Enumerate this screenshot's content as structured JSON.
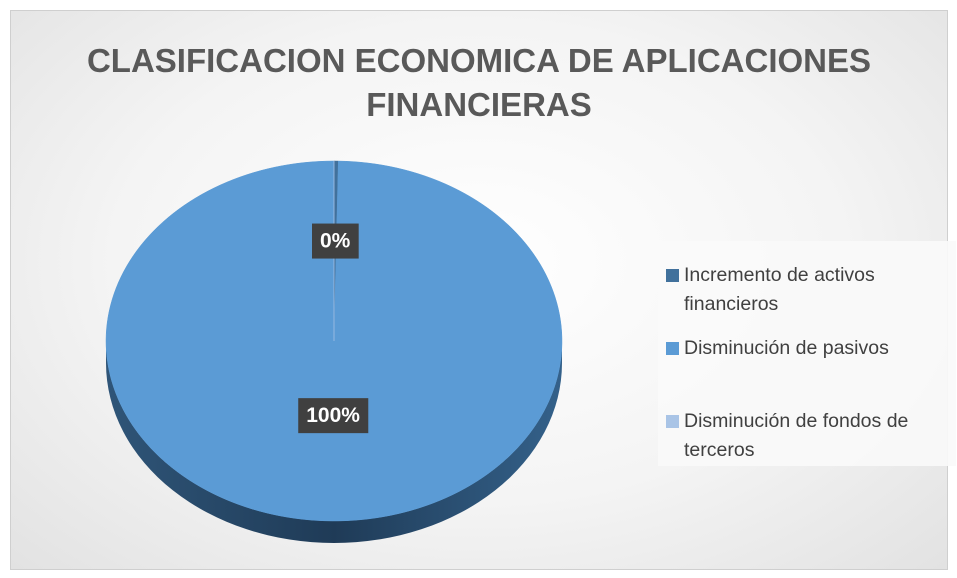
{
  "chart_data": {
    "type": "pie",
    "title": "CLASIFICACION ECONOMICA DE APLICACIONES FINANCIERAS",
    "categories": [
      "Incremento de activos financieros",
      "Disminución de pasivos",
      "Disminución de fondos de terceros"
    ],
    "values": [
      0.3,
      99.7,
      0
    ],
    "value_labels": [
      "0%",
      "100%",
      null
    ],
    "colors": [
      "#41719c",
      "#5b9bd5",
      "#a9c4e6"
    ],
    "legend": "right"
  }
}
